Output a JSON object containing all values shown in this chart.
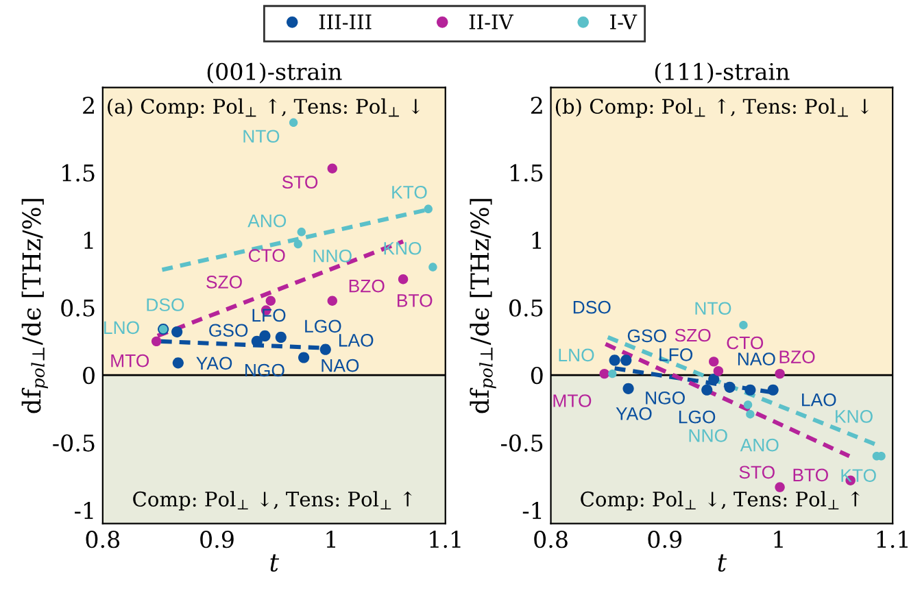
{
  "chart_data": [
    {
      "type": "scatter",
      "title": "(001)-strain",
      "xlabel": "t",
      "ylabel": "df$_{pol⊥}$/dϵ [THz/%]",
      "xlim": [
        0.8,
        1.1
      ],
      "ylim": [
        -1.1,
        2.13
      ],
      "xticks": [
        0.8,
        0.9,
        1,
        1.1
      ],
      "yticks": [
        -1,
        -0.5,
        0,
        0.5,
        1,
        1.5,
        2
      ],
      "grid": false,
      "legend": "top",
      "bands": [
        {
          "axis": "y",
          "from": 0,
          "to": 2.13,
          "color": "#fcefcf"
        },
        {
          "axis": "y",
          "from": -1.1,
          "to": 0,
          "color": "#e8ebdc"
        }
      ],
      "ref_lines": [
        {
          "axis": "y",
          "value": 0,
          "color": "#000000"
        }
      ],
      "series": [
        {
          "name": "III-III",
          "marker": "circle",
          "color": "#0a4f9e",
          "x": [
            0.853,
            0.865,
            0.942,
            0.935,
            0.956,
            0.995,
            0.866,
            0.976
          ],
          "values": [
            0.34,
            0.32,
            0.29,
            0.25,
            0.28,
            0.19,
            0.09,
            0.13
          ]
        },
        {
          "name": "II-IV",
          "marker": "circle",
          "color": "#b5239a",
          "x": [
            1.001,
            1.063,
            0.947,
            0.943,
            1.001,
            0.847
          ],
          "values": [
            1.53,
            0.71,
            0.55,
            0.48,
            0.55,
            0.25
          ]
        },
        {
          "name": "I-V",
          "marker": "circle",
          "color": "#5bc0c9",
          "x": [
            0.967,
            1.085,
            0.974,
            0.971,
            1.089,
            0.853
          ],
          "values": [
            1.87,
            1.23,
            1.06,
            0.97,
            0.8,
            0.34
          ]
        },
        {
          "type": "line",
          "line_style": "dashed",
          "color": "#0a4f9e",
          "x": [
            0.851,
            0.995
          ],
          "values": [
            0.25,
            0.2
          ]
        },
        {
          "type": "line",
          "line_style": "dashed",
          "color": "#b5239a",
          "x": [
            0.848,
            1.063
          ],
          "values": [
            0.29,
            0.99
          ]
        },
        {
          "type": "line",
          "line_style": "dashed",
          "color": "#5bc0c9",
          "x": [
            0.852,
            1.087
          ],
          "values": [
            0.78,
            1.23
          ]
        }
      ],
      "annotations": [
        "(a) Comp: Pol$_{⊥}$ ↑, Tens: Pol$_{⊥}$ ↓",
        "Comp: Pol$_{⊥}$ ↓, Tens: Pol$_{⊥}$ ↑",
        {
          "text": "NTO",
          "x": 0.967,
          "y": 1.87
        },
        {
          "text": "STO",
          "x": 1.001,
          "y": 1.53
        },
        {
          "text": "KTO",
          "x": 1.085,
          "y": 1.23
        },
        {
          "text": "ANO",
          "x": 0.974,
          "y": 1.06
        },
        {
          "text": "NNO",
          "x": 0.971,
          "y": 0.97
        },
        {
          "text": "KNO",
          "x": 1.089,
          "y": 0.8
        },
        {
          "text": "BTO",
          "x": 1.063,
          "y": 0.71
        },
        {
          "text": "CTO",
          "x": 0.947,
          "y": 0.55
        },
        {
          "text": "SZO",
          "x": 0.943,
          "y": 0.48
        },
        {
          "text": "BZO",
          "x": 1.001,
          "y": 0.55
        },
        {
          "text": "LNO",
          "x": 0.853,
          "y": 0.34
        },
        {
          "text": "DSO",
          "x": 0.853,
          "y": 0.34
        },
        {
          "text": "GSO",
          "x": 0.865,
          "y": 0.32
        },
        {
          "text": "MTO",
          "x": 0.847,
          "y": 0.25
        },
        {
          "text": "LFO",
          "x": 0.942,
          "y": 0.29
        },
        {
          "text": "NGO",
          "x": 0.935,
          "y": 0.25
        },
        {
          "text": "LGO",
          "x": 0.956,
          "y": 0.28
        },
        {
          "text": "LAO",
          "x": 0.995,
          "y": 0.19
        },
        {
          "text": "YAO",
          "x": 0.866,
          "y": 0.09
        },
        {
          "text": "NAO",
          "x": 0.976,
          "y": 0.13
        }
      ]
    },
    {
      "type": "scatter",
      "title": "(111)-strain",
      "xlabel": "t",
      "ylabel": "df$_{pol⊥}$/dϵ [THz/%]",
      "xlim": [
        0.8,
        1.1
      ],
      "ylim": [
        -1.1,
        2.13
      ],
      "xticks": [
        0.8,
        0.9,
        1,
        1.1
      ],
      "yticks": [
        -1,
        -0.5,
        0,
        0.5,
        1,
        1.5,
        2
      ],
      "grid": false,
      "bands": [
        {
          "axis": "y",
          "from": 0,
          "to": 2.13,
          "color": "#fcefcf"
        },
        {
          "axis": "y",
          "from": -1.1,
          "to": 0,
          "color": "#e8ebdc"
        }
      ],
      "ref_lines": [
        {
          "axis": "y",
          "value": 0,
          "color": "#000000"
        }
      ],
      "series": [
        {
          "marker": "circle",
          "color": "#0a4f9e",
          "x": [
            0.856,
            0.866,
            0.868,
            0.937,
            0.943,
            0.957,
            0.975,
            0.995
          ],
          "values": [
            0.11,
            0.11,
            -0.1,
            -0.11,
            -0.03,
            -0.09,
            -0.11,
            -0.11
          ]
        },
        {
          "marker": "circle",
          "color": "#b5239a",
          "x": [
            0.847,
            0.943,
            0.947,
            1.001,
            1.001,
            1.063
          ],
          "values": [
            0.01,
            0.1,
            0.03,
            0.01,
            -0.83,
            -0.78
          ]
        },
        {
          "marker": "circle",
          "color": "#5bc0c9",
          "x": [
            0.854,
            0.969,
            0.973,
            0.975,
            1.086,
            1.09
          ],
          "values": [
            0.01,
            0.37,
            -0.22,
            -0.29,
            -0.6,
            -0.6
          ]
        },
        {
          "type": "line",
          "line_style": "dashed",
          "color": "#0a4f9e",
          "x": [
            0.856,
            0.996
          ],
          "values": [
            0.05,
            -0.13
          ]
        },
        {
          "type": "line",
          "line_style": "dashed",
          "color": "#b5239a",
          "x": [
            0.848,
            1.062
          ],
          "values": [
            0.23,
            -0.6
          ]
        },
        {
          "type": "line",
          "line_style": "dashed",
          "color": "#5bc0c9",
          "x": [
            0.85,
            1.09
          ],
          "values": [
            0.28,
            -0.53
          ]
        }
      ],
      "annotations": [
        "(b) Comp: Pol$_{⊥}$ ↑, Tens: Pol$_{⊥}$ ↓",
        "Comp: Pol$_{⊥}$ ↓, Tens: Pol$_{⊥}$ ↑",
        {
          "text": "LNO",
          "x": 0.854,
          "y": 0.01
        },
        {
          "text": "MTO",
          "x": 0.847,
          "y": 0.01
        },
        {
          "text": "DSO",
          "x": 0.856,
          "y": 0.11
        },
        {
          "text": "GSO",
          "x": 0.866,
          "y": 0.11
        },
        {
          "text": "YAO",
          "x": 0.868,
          "y": -0.1
        },
        {
          "text": "NGO",
          "x": 0.937,
          "y": -0.11
        },
        {
          "text": "LFO",
          "x": 0.943,
          "y": -0.03
        },
        {
          "text": "SZO",
          "x": 0.943,
          "y": 0.1
        },
        {
          "text": "CTO",
          "x": 0.947,
          "y": 0.03
        },
        {
          "text": "NAO",
          "x": 0.957,
          "y": -0.09
        },
        {
          "text": "LGO",
          "x": 0.975,
          "y": -0.11
        },
        {
          "text": "NNO",
          "x": 0.973,
          "y": -0.22
        },
        {
          "text": "ANO",
          "x": 0.975,
          "y": -0.29
        },
        {
          "text": "LAO",
          "x": 0.995,
          "y": -0.11
        },
        {
          "text": "BZO",
          "x": 1.001,
          "y": 0.01
        },
        {
          "text": "NTO",
          "x": 0.969,
          "y": 0.37
        },
        {
          "text": "KNO",
          "x": 1.086,
          "y": -0.6
        },
        {
          "text": "KTO",
          "x": 1.09,
          "y": -0.6
        },
        {
          "text": "STO",
          "x": 1.001,
          "y": -0.83
        },
        {
          "text": "BTO",
          "x": 1.063,
          "y": -0.78
        }
      ]
    }
  ]
}
